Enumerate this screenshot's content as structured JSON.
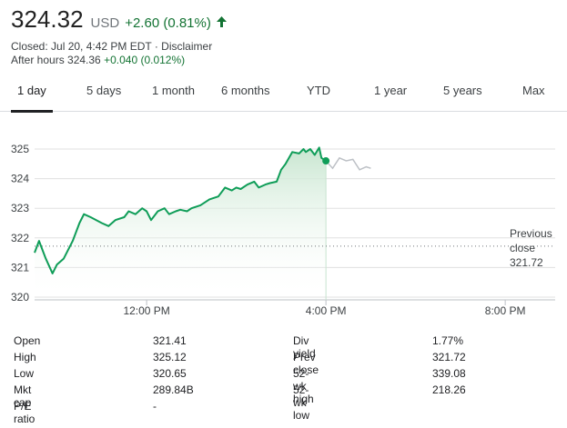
{
  "quote": {
    "price": "324.32",
    "currency": "USD",
    "change": "+2.60 (0.81%)",
    "closed_line": "Closed: Jul 20, 4:42 PM EDT · Disclaimer",
    "after_hours_label": "After hours 324.36",
    "after_hours_change": "+0.040 (0.012%)"
  },
  "tabs": [
    "1 day",
    "5 days",
    "1 month",
    "6 months",
    "YTD",
    "1 year",
    "5 years",
    "Max"
  ],
  "active_tab": "1 day",
  "colors": {
    "positive": "#137333",
    "line": "#0f9d58",
    "after_hours_line": "#bdc1c6",
    "fill_top": "#c8e6d0",
    "fill_bottom": "#ffffff",
    "gridline": "#e0e0e0"
  },
  "previous_close_label": [
    "Previous",
    "close",
    "321.72"
  ],
  "chart_data": {
    "type": "line",
    "x_ticks": [
      "12:00 PM",
      "4:00 PM",
      "8:00 PM"
    ],
    "x_tick_hours": [
      12,
      16,
      20
    ],
    "x_range_hours": [
      9.5,
      20.5
    ],
    "ylim": [
      320,
      325.5
    ],
    "y_ticks": [
      320,
      321,
      322,
      323,
      324,
      325
    ],
    "previous_close": 321.72,
    "series": [
      {
        "session": "regular",
        "x_hours": [
          9.5,
          9.6,
          9.75,
          9.9,
          10.0,
          10.15,
          10.35,
          10.5,
          10.6,
          10.75,
          11.0,
          11.15,
          11.3,
          11.5,
          11.6,
          11.75,
          11.9,
          12.0,
          12.1,
          12.25,
          12.4,
          12.5,
          12.65,
          12.75,
          12.9,
          13.0,
          13.2,
          13.4,
          13.6,
          13.75,
          13.9,
          14.0,
          14.1,
          14.25,
          14.4,
          14.5,
          14.65,
          14.75,
          14.9,
          15.0,
          15.1,
          15.25,
          15.4,
          15.5,
          15.55,
          15.65,
          15.75,
          15.85,
          15.9,
          16.0
        ],
        "y": [
          321.5,
          321.9,
          321.3,
          320.8,
          321.1,
          321.3,
          321.9,
          322.5,
          322.8,
          322.7,
          322.5,
          322.4,
          322.6,
          322.7,
          322.9,
          322.8,
          323.0,
          322.9,
          322.6,
          322.9,
          323.0,
          322.8,
          322.9,
          322.95,
          322.9,
          323.0,
          323.1,
          323.3,
          323.4,
          323.7,
          323.6,
          323.7,
          323.65,
          323.8,
          323.9,
          323.7,
          323.8,
          323.85,
          323.9,
          324.3,
          324.5,
          324.9,
          324.85,
          325.0,
          324.9,
          325.0,
          324.8,
          325.05,
          324.7,
          324.6
        ]
      },
      {
        "session": "after_hours",
        "x_hours": [
          16.0,
          16.15,
          16.3,
          16.45,
          16.6,
          16.75,
          16.9,
          17.0
        ],
        "y": [
          324.6,
          324.35,
          324.7,
          324.6,
          324.65,
          324.3,
          324.4,
          324.35
        ]
      }
    ]
  },
  "stats": {
    "left": [
      {
        "label": "Open",
        "value": "321.41"
      },
      {
        "label": "High",
        "value": "325.12"
      },
      {
        "label": "Low",
        "value": "320.65"
      },
      {
        "label": "Mkt cap",
        "value": "289.84B"
      },
      {
        "label": "P/E ratio",
        "value": "-"
      }
    ],
    "right": [
      {
        "label": "Div yield",
        "value": "1.77%"
      },
      {
        "label": "Prev close",
        "value": "321.72"
      },
      {
        "label": "52-wk high",
        "value": "339.08"
      },
      {
        "label": "52-wk low",
        "value": "218.26"
      }
    ]
  }
}
